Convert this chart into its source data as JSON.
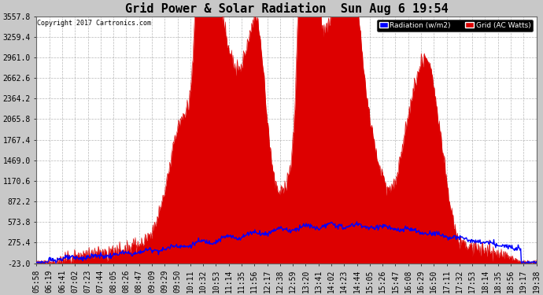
{
  "title": "Grid Power & Solar Radiation  Sun Aug 6 19:54",
  "copyright": "Copyright 2017 Cartronics.com",
  "legend_radiation": "Radiation (w/m2)",
  "legend_grid": "Grid (AC Watts)",
  "ymin": -23.0,
  "ymax": 3557.8,
  "yticks": [
    -23.0,
    275.4,
    573.8,
    872.2,
    1170.6,
    1469.0,
    1767.4,
    2065.8,
    2364.2,
    2662.6,
    2961.0,
    3259.4,
    3557.8
  ],
  "bg_color": "#c8c8c8",
  "plot_bg": "#ffffff",
  "grid_color": "#888888",
  "radiation_color": "#0000ff",
  "grid_fill_color": "#dd0000",
  "title_fontsize": 11,
  "tick_fontsize": 7,
  "xlabel_rotation": 90,
  "xtick_labels": [
    "05:58",
    "06:19",
    "06:41",
    "07:02",
    "07:23",
    "07:44",
    "08:05",
    "08:26",
    "08:47",
    "09:09",
    "09:29",
    "09:50",
    "10:11",
    "10:32",
    "10:53",
    "11:14",
    "11:35",
    "11:56",
    "12:17",
    "12:38",
    "12:59",
    "13:20",
    "13:41",
    "14:02",
    "14:23",
    "14:44",
    "15:05",
    "15:26",
    "15:47",
    "16:08",
    "16:29",
    "16:50",
    "17:11",
    "17:32",
    "17:53",
    "18:14",
    "18:35",
    "18:56",
    "19:17",
    "19:38"
  ],
  "n_points": 800
}
